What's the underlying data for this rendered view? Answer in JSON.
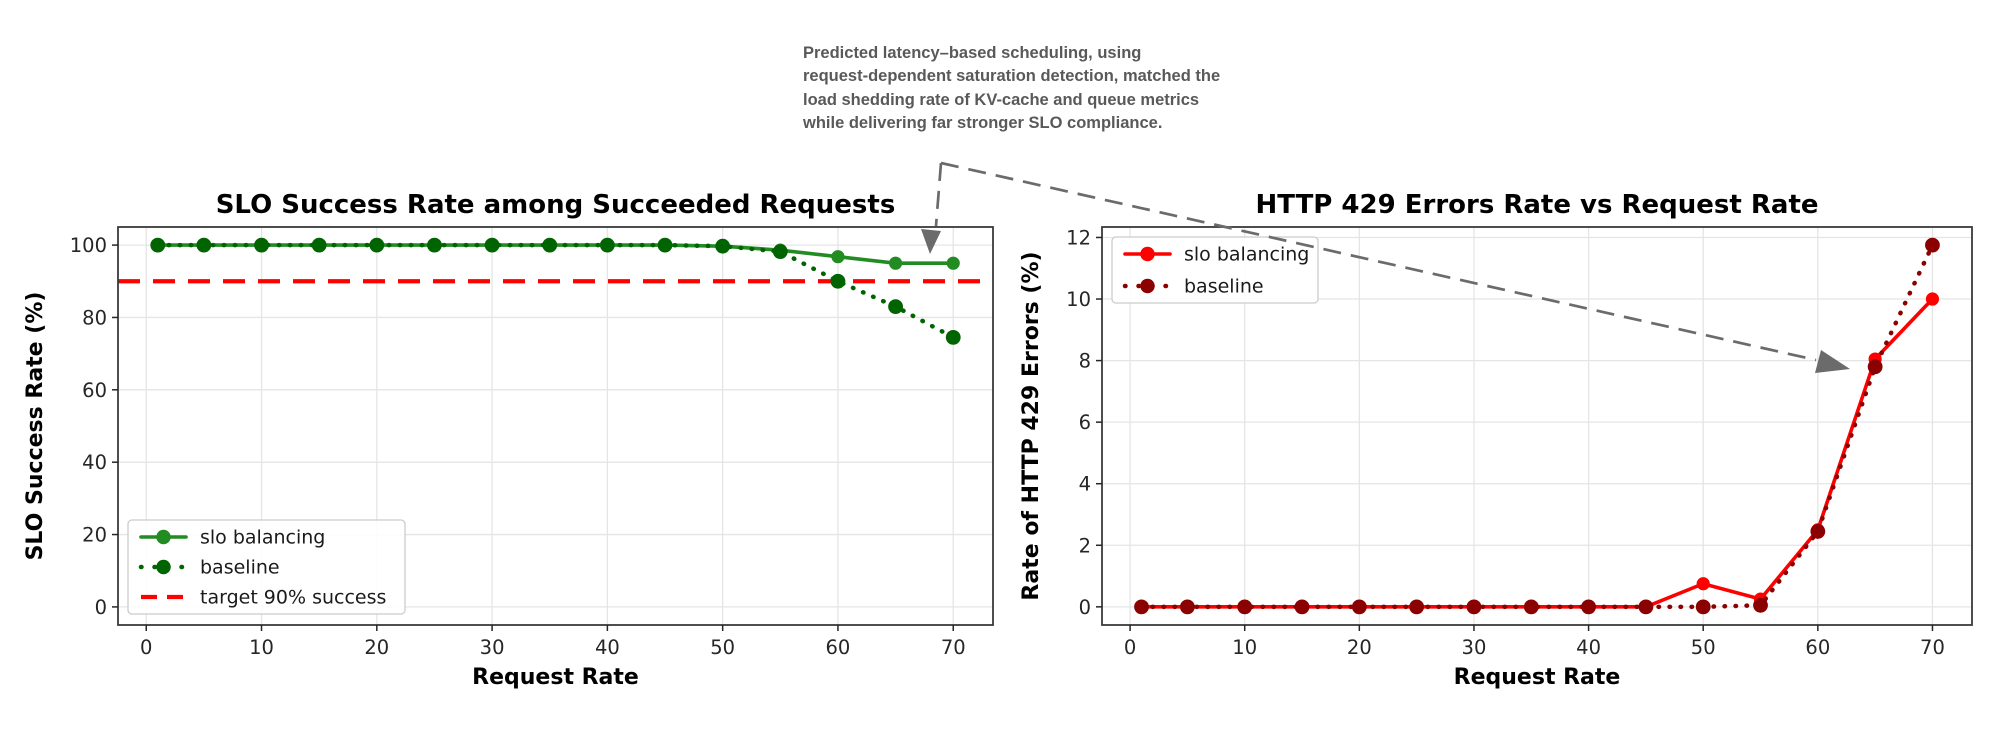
{
  "figure": {
    "background": "#ffffff",
    "annotation": {
      "text": "Predicted latency–based scheduling, using\nrequest-dependent saturation detection, matched the\nload shedding rate of KV-cache and queue metrics\nwhile delivering far stronger SLO compliance.",
      "color": "#595959",
      "arrow_color": "#6b6b6b"
    }
  },
  "chart_data": [
    {
      "id": "slo-success",
      "type": "line",
      "title": "SLO Success Rate among Succeeded Requests",
      "xlabel": "Request Rate",
      "ylabel": "SLO Success Rate (%)",
      "x": [
        1,
        5,
        10,
        15,
        20,
        25,
        30,
        35,
        40,
        45,
        50,
        55,
        60,
        65,
        70
      ],
      "series": [
        {
          "name": "slo balancing",
          "color": "#228B22",
          "line_style": "solid",
          "values": [
            100,
            100,
            100,
            100,
            100,
            100,
            100,
            100,
            100,
            100,
            99.7,
            98.6,
            96.8,
            95,
            95
          ]
        },
        {
          "name": "baseline",
          "color": "#006400",
          "line_style": "dotted",
          "values": [
            100,
            100,
            100,
            100,
            100,
            100,
            100,
            100,
            100,
            100,
            99.7,
            98.2,
            90,
            83,
            74.5
          ]
        }
      ],
      "hline": {
        "label": "target 90% success",
        "y": 90,
        "color": "#ff0000",
        "line_style": "dashed"
      },
      "xticks": [
        0,
        10,
        20,
        30,
        40,
        50,
        60,
        70
      ],
      "yticks": [
        0,
        20,
        40,
        60,
        80,
        100
      ],
      "xlim": [
        -2.45,
        73.45
      ],
      "ylim": [
        -5,
        105
      ],
      "grid": true,
      "legend_position": "lower left"
    },
    {
      "id": "http-429",
      "type": "line",
      "title": "HTTP 429 Errors Rate vs Request Rate",
      "xlabel": "Request Rate",
      "ylabel": "Rate of HTTP 429 Errors (%)",
      "x": [
        1,
        5,
        10,
        15,
        20,
        25,
        30,
        35,
        40,
        45,
        50,
        55,
        60,
        65,
        70
      ],
      "series": [
        {
          "name": "slo balancing",
          "color": "#ff0000",
          "line_style": "solid",
          "values": [
            0,
            0,
            0,
            0,
            0,
            0,
            0,
            0,
            0,
            0,
            0.75,
            0.25,
            2.5,
            8.05,
            10.0
          ]
        },
        {
          "name": "baseline",
          "color": "#8B0000",
          "line_style": "dotted",
          "values": [
            0,
            0,
            0,
            0,
            0,
            0,
            0,
            0,
            0,
            0,
            0,
            0.05,
            2.45,
            7.8,
            11.75
          ]
        }
      ],
      "xticks": [
        0,
        10,
        20,
        30,
        40,
        50,
        60,
        70
      ],
      "yticks": [
        0,
        2,
        4,
        6,
        8,
        10,
        12
      ],
      "xlim": [
        -2.45,
        73.45
      ],
      "ylim": [
        -0.59,
        12.34
      ],
      "grid": true,
      "legend_position": "upper left"
    }
  ]
}
